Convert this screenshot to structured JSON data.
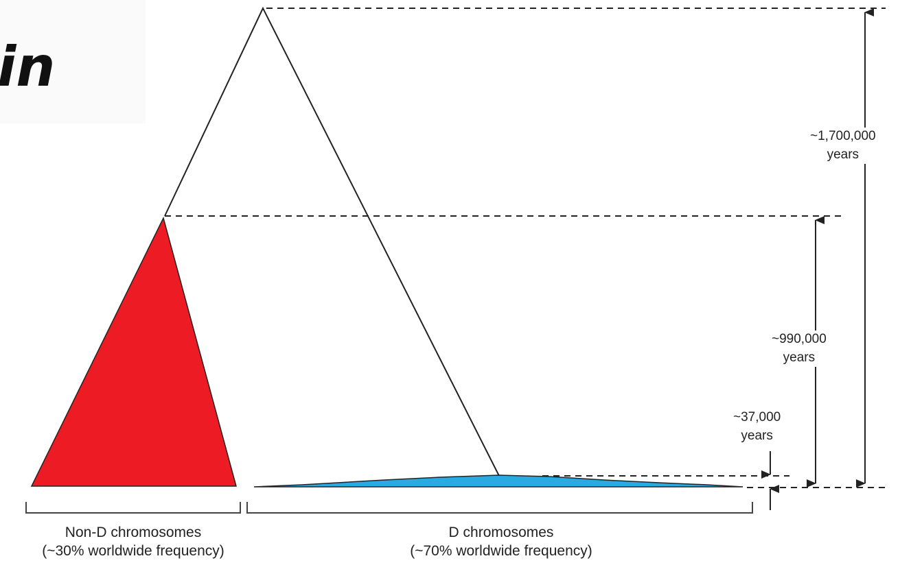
{
  "title_fragment": "in",
  "timescales": [
    {
      "value": "~1,700,000",
      "unit": "years"
    },
    {
      "value": "~990,000",
      "unit": "years"
    },
    {
      "value": "~37,000",
      "unit": "years"
    }
  ],
  "groups": [
    {
      "name": "Non-D chromosomes",
      "frequency": "(~30% worldwide frequency)",
      "color": "#ed1c24"
    },
    {
      "name": "D chromosomes",
      "frequency": "(~70% worldwide frequency)",
      "color": "#29abe2"
    }
  ]
}
